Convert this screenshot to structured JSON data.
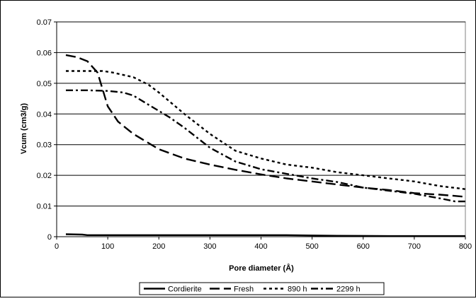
{
  "chart_data": {
    "type": "line",
    "title": "",
    "xlabel": "Pore diameter (Å)",
    "ylabel": "Vcum (cm3/g)",
    "xlim": [
      0,
      800
    ],
    "ylim": [
      0,
      0.07
    ],
    "x_ticks": [
      "0",
      "100",
      "200",
      "300",
      "400",
      "500",
      "600",
      "700",
      "800"
    ],
    "y_ticks": [
      "0",
      "0.01",
      "0.02",
      "0.03",
      "0.04",
      "0.05",
      "0.06",
      "0.07"
    ],
    "grid": "horizontal",
    "legend_position": "bottom",
    "series": [
      {
        "name": "Cordierite",
        "dash": "solid",
        "points": [
          [
            18,
            0.0008
          ],
          [
            50,
            0.0007
          ],
          [
            60,
            0.0005
          ],
          [
            150,
            0.0005
          ],
          [
            300,
            0.0005
          ],
          [
            450,
            0.0005
          ],
          [
            550,
            0.0003
          ],
          [
            650,
            0.0002
          ],
          [
            800,
            0.0002
          ]
        ]
      },
      {
        "name": "Fresh",
        "dash": "long-dash",
        "points": [
          [
            18,
            0.0592
          ],
          [
            40,
            0.0585
          ],
          [
            60,
            0.0572
          ],
          [
            80,
            0.0535
          ],
          [
            100,
            0.0425
          ],
          [
            120,
            0.0375
          ],
          [
            150,
            0.0335
          ],
          [
            200,
            0.0285
          ],
          [
            250,
            0.0255
          ],
          [
            300,
            0.0235
          ],
          [
            350,
            0.0218
          ],
          [
            400,
            0.0203
          ],
          [
            450,
            0.019
          ],
          [
            500,
            0.018
          ],
          [
            550,
            0.017
          ],
          [
            600,
            0.016
          ],
          [
            650,
            0.0152
          ],
          [
            700,
            0.0142
          ],
          [
            750,
            0.0137
          ],
          [
            800,
            0.013
          ]
        ]
      },
      {
        "name": "890 h",
        "dash": "short-dash",
        "points": [
          [
            18,
            0.054
          ],
          [
            60,
            0.054
          ],
          [
            90,
            0.054
          ],
          [
            110,
            0.0535
          ],
          [
            150,
            0.052
          ],
          [
            180,
            0.0495
          ],
          [
            200,
            0.047
          ],
          [
            250,
            0.04
          ],
          [
            300,
            0.0335
          ],
          [
            350,
            0.028
          ],
          [
            400,
            0.0255
          ],
          [
            450,
            0.0235
          ],
          [
            500,
            0.0225
          ],
          [
            550,
            0.021
          ],
          [
            600,
            0.02
          ],
          [
            650,
            0.019
          ],
          [
            700,
            0.018
          ],
          [
            750,
            0.0165
          ],
          [
            800,
            0.0155
          ]
        ]
      },
      {
        "name": "2299 h",
        "dash": "dash-dot",
        "points": [
          [
            18,
            0.0477
          ],
          [
            60,
            0.0477
          ],
          [
            100,
            0.0475
          ],
          [
            130,
            0.047
          ],
          [
            150,
            0.046
          ],
          [
            180,
            0.043
          ],
          [
            220,
            0.039
          ],
          [
            250,
            0.0355
          ],
          [
            300,
            0.029
          ],
          [
            350,
            0.0245
          ],
          [
            400,
            0.022
          ],
          [
            450,
            0.0205
          ],
          [
            500,
            0.019
          ],
          [
            550,
            0.0178
          ],
          [
            600,
            0.016
          ],
          [
            650,
            0.015
          ],
          [
            700,
            0.014
          ],
          [
            750,
            0.0125
          ],
          [
            780,
            0.0115
          ],
          [
            800,
            0.0115
          ]
        ]
      }
    ]
  }
}
